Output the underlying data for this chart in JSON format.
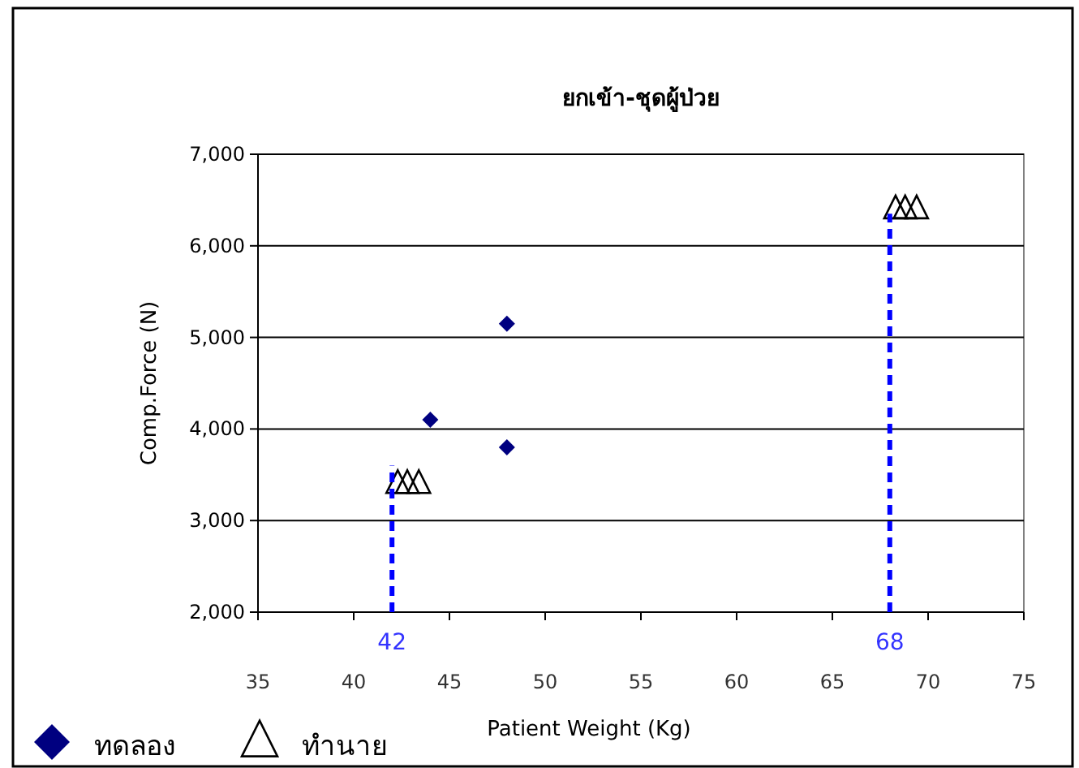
{
  "chart_data": {
    "type": "scatter",
    "title": "ยกเข้า-ชุดผู้ป่วย",
    "xlabel": "Patient Weight (Kg)",
    "ylabel": "Comp.Force (N)",
    "xlim": [
      35,
      75
    ],
    "xticks": [
      35,
      40,
      45,
      50,
      55,
      60,
      65,
      70,
      75
    ],
    "ylim": [
      2000,
      7000
    ],
    "yticks": [
      {
        "value": 2000,
        "label": "2,000"
      },
      {
        "value": 3000,
        "label": "3,000"
      },
      {
        "value": 4000,
        "label": "4,000"
      },
      {
        "value": 5000,
        "label": "5,000"
      },
      {
        "value": 6000,
        "label": "6,000"
      },
      {
        "value": 7000,
        "label": "7,000"
      }
    ],
    "grid": "y",
    "legend": "bottom left",
    "series": [
      {
        "name": "ทดลอง",
        "color": "#000080",
        "marker": "diamond",
        "x": [
          44,
          48,
          48
        ],
        "values": [
          4100,
          5150,
          3800
        ]
      },
      {
        "name": "ทำนาย",
        "color": "#000000",
        "marker": "triangle",
        "x": [
          42.3,
          42.8,
          43.4,
          68.3,
          68.8,
          69.4
        ],
        "values": [
          3400,
          3400,
          3400,
          6400,
          6400,
          6400
        ]
      },
      {
        "type": "line",
        "color": "#0000ff",
        "line_style": "dashed",
        "marker": "none",
        "x": [
          42,
          42
        ],
        "values": [
          2000,
          3600
        ]
      },
      {
        "type": "line",
        "color": "#0000ff",
        "line_style": "dashed",
        "marker": "none",
        "x": [
          68,
          68
        ],
        "values": [
          2000,
          6350
        ]
      }
    ],
    "annotations": [
      {
        "text": "42",
        "x": 42,
        "y": 2000
      },
      {
        "text": "68",
        "x": 68,
        "y": 2000
      }
    ]
  }
}
